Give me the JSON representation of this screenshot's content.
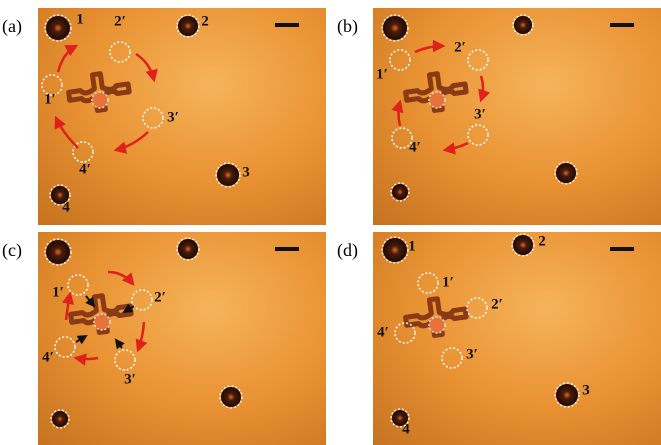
{
  "panels": [
    {
      "label": "(a)",
      "markers": [
        "1",
        "2",
        "3",
        "4",
        "1′",
        "2′",
        "3′",
        "4′"
      ]
    },
    {
      "label": "(b)",
      "markers": [
        "1′",
        "2′",
        "3′",
        "4′"
      ]
    },
    {
      "label": "(c)",
      "markers": [
        "1′",
        "2′",
        "3′",
        "4′"
      ]
    },
    {
      "label": "(d)",
      "markers": [
        "1",
        "2",
        "3",
        "4",
        "1′",
        "2′",
        "3′",
        "4′"
      ]
    }
  ]
}
